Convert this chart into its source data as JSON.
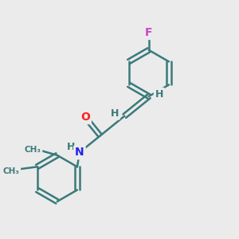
{
  "background_color": "#ebebeb",
  "bond_color": "#3a7a7a",
  "bond_width": 1.8,
  "atom_colors": {
    "F": "#cc44cc",
    "O": "#ff2020",
    "N": "#2222ee",
    "H": "#3a7a7a",
    "C": "#3a7a7a",
    "Me": "#3a7a7a"
  },
  "figsize": [
    3.0,
    3.0
  ],
  "dpi": 100
}
